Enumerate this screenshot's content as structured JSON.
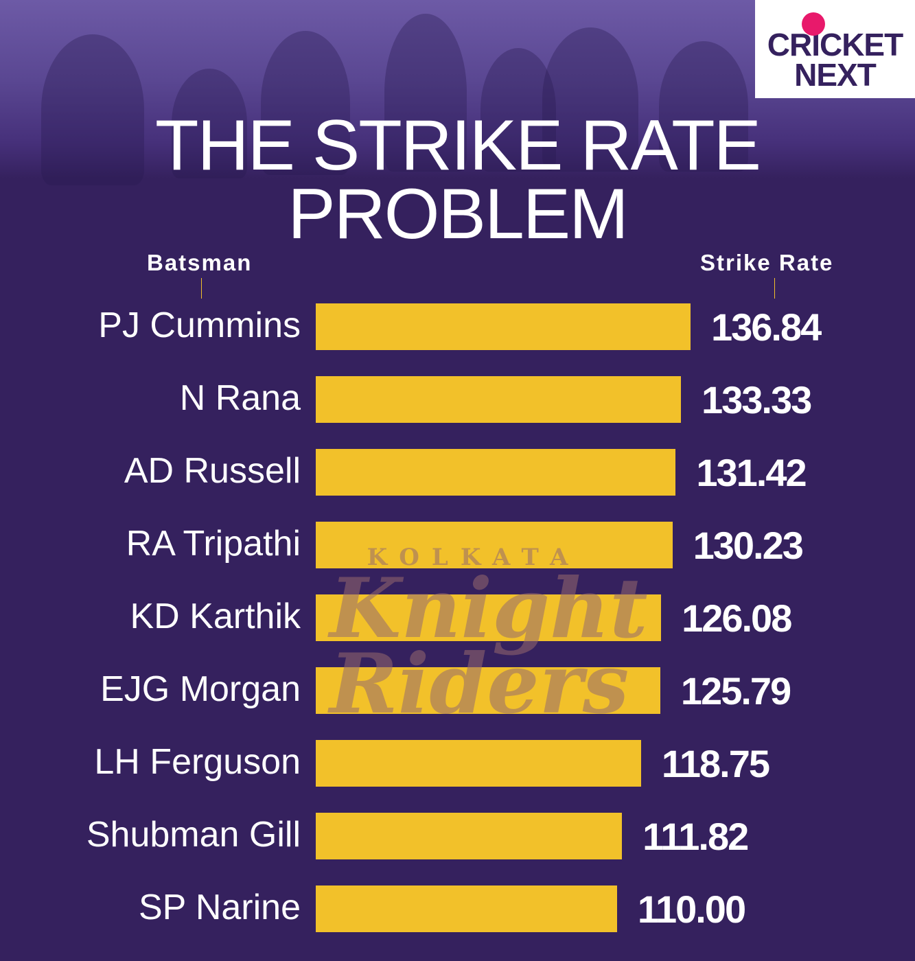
{
  "logo": {
    "line1": "CRICKET",
    "line2": "NEXT"
  },
  "watermark": {
    "line1": "KOLKATA",
    "line2": "Knight",
    "line3": "Riders"
  },
  "colors": {
    "background": "#35215e",
    "bar": "#f2c12a",
    "text": "#ffffff",
    "brand_pink": "#e8196b"
  },
  "chart_data": {
    "type": "bar",
    "orientation": "horizontal",
    "title": "THE STRIKE RATE PROBLEM",
    "title_line1": "THE STRIKE RATE",
    "title_line2": "PROBLEM",
    "xlabel": "Strike Rate",
    "ylabel": "Batsman",
    "xlim": [
      0,
      137
    ],
    "grid": false,
    "categories": [
      "PJ Cummins",
      "N Rana",
      "AD Russell",
      "RA Tripathi",
      "KD Karthik",
      "EJG Morgan",
      "LH Ferguson",
      "Shubman Gill",
      "SP Narine"
    ],
    "values": [
      136.84,
      133.33,
      131.42,
      130.23,
      126.08,
      125.79,
      118.75,
      111.82,
      110.0
    ],
    "labels": [
      "136.84",
      "133.33",
      "131.42",
      "130.23",
      "126.08",
      "125.79",
      "118.75",
      "111.82",
      "110.00"
    ]
  }
}
